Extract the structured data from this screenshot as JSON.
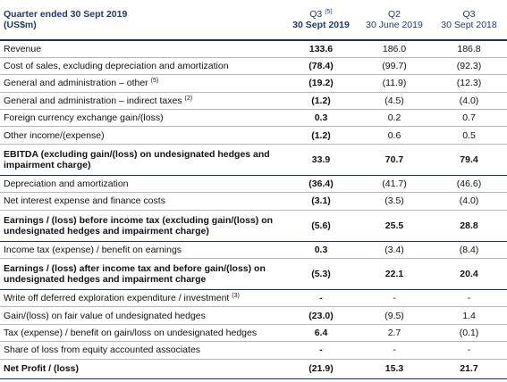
{
  "header": {
    "title": "Quarter ended 30 Sept 2019",
    "unit": "(US$m)",
    "columns": [
      {
        "period": "Q3",
        "note": "(5)",
        "date": "30 Sept 2019"
      },
      {
        "period": "Q2",
        "date": "30 June 2019"
      },
      {
        "period": "Q3",
        "date": "30 Sept 2018"
      }
    ]
  },
  "table": {
    "rows": [
      {
        "label": "Revenue",
        "values": [
          "133.6",
          "186.0",
          "186.8"
        ]
      },
      {
        "label": "Cost of sales, excluding depreciation and amortization",
        "values": [
          "(78.4)",
          "(99.7)",
          "(92.3)"
        ]
      },
      {
        "label": "General and administration – other",
        "note": "(5)",
        "values": [
          "(19.2)",
          "(11.9)",
          "(12.3)"
        ]
      },
      {
        "label": "General and administration – indirect taxes",
        "note": "(2)",
        "values": [
          "(1.2)",
          "(4.5)",
          "(4.0)"
        ]
      },
      {
        "label": "Foreign currency exchange gain/(loss)",
        "values": [
          "0.3",
          "0.2",
          "0.7"
        ]
      },
      {
        "label": "Other income/(expense)",
        "values": [
          "(1.2)",
          "0.6",
          "0.5"
        ]
      },
      {
        "label": "EBITDA (excluding gain/(loss) on undesignated hedges and impairment charge)",
        "bold": true,
        "values": [
          "33.9",
          "70.7",
          "79.4"
        ]
      },
      {
        "label": "Depreciation and amortization",
        "values": [
          "(36.4)",
          "(41.7)",
          "(46.6)"
        ]
      },
      {
        "label": "Net interest expense and finance costs",
        "values": [
          "(3.1)",
          "(3.5)",
          "(4.0)"
        ]
      },
      {
        "label": "Earnings / (loss) before income tax (excluding gain/(loss) on undesignated hedges and impairment charge)",
        "bold": true,
        "values": [
          "(5.6)",
          "25.5",
          "28.8"
        ]
      },
      {
        "label": "Income tax (expense) / benefit on earnings",
        "values": [
          "0.3",
          "(3.4)",
          "(8.4)"
        ]
      },
      {
        "label": "Earnings / (loss) after income tax and before gain/(loss) on undesignated hedges and impairment charge",
        "bold": true,
        "values": [
          "(5.3)",
          "22.1",
          "20.4"
        ]
      },
      {
        "label": "Write off deferred exploration expenditure / investment",
        "note": "(3)",
        "values": [
          "-",
          "-",
          "-"
        ]
      },
      {
        "label": "Gain/(loss) on fair value of undesignated hedges",
        "values": [
          "(23.0)",
          "(9.5)",
          "1.4"
        ]
      },
      {
        "label": "Tax (expense) / benefit on gain/loss on undesignated hedges",
        "values": [
          "6.4",
          "2.7",
          "(0.1)"
        ]
      },
      {
        "label": "Share of loss from equity accounted associates",
        "values": [
          "-",
          "-",
          "-"
        ]
      },
      {
        "label": "Net Profit / (loss)",
        "bold": true,
        "values": [
          "(21.9)",
          "15.3",
          "21.7"
        ]
      }
    ]
  }
}
